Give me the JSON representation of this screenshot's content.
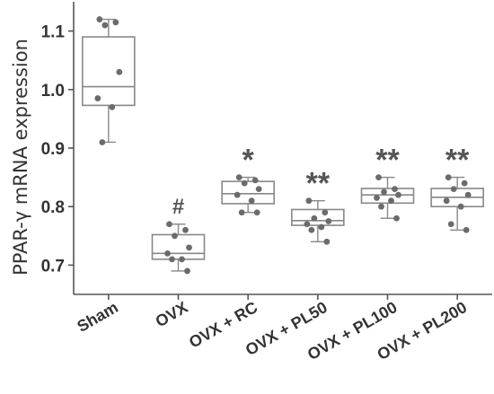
{
  "chart_data": {
    "type": "box",
    "ylabel": "PPAR-γ mRNA expression",
    "xlabel": "",
    "ylim": [
      0.65,
      1.15
    ],
    "yticks": [
      0.7,
      0.8,
      0.9,
      1.0,
      1.1
    ],
    "ytick_labels": [
      "0.7",
      "0.8",
      "0.9",
      "1.0",
      "1.1"
    ],
    "categories": [
      "Sham",
      "OVX",
      "OVX + RC",
      "OVX + PL50",
      "OVX + PL100",
      "OVX + PL200"
    ],
    "annotations": [
      "",
      "#",
      "*",
      "**",
      "**",
      "**"
    ],
    "groups": [
      {
        "name": "Sham",
        "q1": 0.973,
        "median": 1.005,
        "q3": 1.09,
        "whisker_low": 0.91,
        "whisker_high": 1.12,
        "points": [
          1.12,
          1.115,
          1.11,
          1.03,
          0.985,
          0.97,
          0.91
        ]
      },
      {
        "name": "OVX",
        "q1": 0.71,
        "median": 0.72,
        "q3": 0.752,
        "whisker_low": 0.69,
        "whisker_high": 0.77,
        "points": [
          0.77,
          0.76,
          0.75,
          0.73,
          0.72,
          0.71,
          0.71,
          0.69
        ]
      },
      {
        "name": "OVX + RC",
        "q1": 0.805,
        "median": 0.822,
        "q3": 0.843,
        "whisker_low": 0.79,
        "whisker_high": 0.85,
        "points": [
          0.85,
          0.845,
          0.84,
          0.83,
          0.82,
          0.81,
          0.79,
          0.79
        ]
      },
      {
        "name": "OVX + PL50",
        "q1": 0.768,
        "median": 0.776,
        "q3": 0.795,
        "whisker_low": 0.74,
        "whisker_high": 0.81,
        "points": [
          0.81,
          0.79,
          0.78,
          0.775,
          0.77,
          0.765,
          0.76,
          0.74
        ]
      },
      {
        "name": "OVX + PL100",
        "q1": 0.806,
        "median": 0.82,
        "q3": 0.831,
        "whisker_low": 0.78,
        "whisker_high": 0.85,
        "points": [
          0.85,
          0.83,
          0.825,
          0.82,
          0.815,
          0.81,
          0.8,
          0.78
        ]
      },
      {
        "name": "OVX + PL200",
        "q1": 0.8,
        "median": 0.816,
        "q3": 0.831,
        "whisker_low": 0.76,
        "whisker_high": 0.85,
        "points": [
          0.85,
          0.84,
          0.83,
          0.82,
          0.81,
          0.8,
          0.77,
          0.76
        ]
      }
    ],
    "grid": false,
    "colors": {
      "box_fill": "#ffffff",
      "box_line": "#888888",
      "point": "#6b6b6b",
      "axis": "#555555",
      "text": "#333333"
    }
  }
}
